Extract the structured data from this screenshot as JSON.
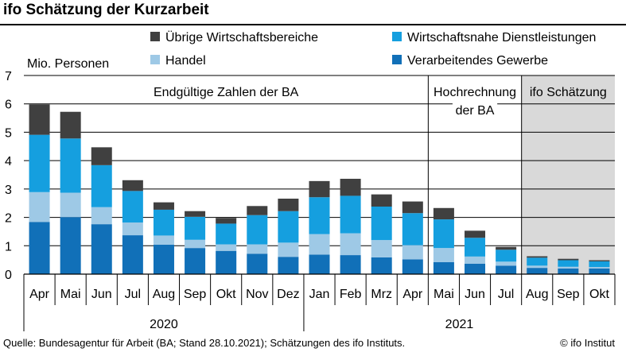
{
  "title": "ifo Schätzung der Kurzarbeit",
  "source": "Quelle: Bundesagentur für Arbeit (BA; Stand 28.10.2021); Schätzungen des ifo Instituts.",
  "copyright": "© ifo Institut",
  "colors": {
    "verarbeitendes": "#1170b8",
    "handel": "#9ec9e6",
    "dienstleistungen": "#159fdf",
    "uebrige": "#404040",
    "shade": "#d9d9d9",
    "gridline": "#000000"
  },
  "chart_data": {
    "type": "bar",
    "stacked": true,
    "ylabel": "Mio. Personen",
    "ylim": [
      0,
      7
    ],
    "yticks": [
      "0",
      "1",
      "2",
      "3",
      "4",
      "5",
      "6",
      "7"
    ],
    "grid": true,
    "legend_position": "top",
    "categories": [
      "Apr",
      "Mai",
      "Jun",
      "Jul",
      "Aug",
      "Sep",
      "Okt",
      "Nov",
      "Dez",
      "Jan",
      "Feb",
      "Mrz",
      "Apr",
      "Mai",
      "Jun",
      "Jul",
      "Aug",
      "Sep",
      "Okt"
    ],
    "years": [
      {
        "label": "2020",
        "from": 0,
        "to": 8
      },
      {
        "label": "2021",
        "from": 9,
        "to": 18
      }
    ],
    "series": [
      {
        "name": "Verarbeitendes Gewerbe",
        "color_key": "verarbeitendes",
        "values": [
          1.84,
          2.01,
          1.76,
          1.37,
          1.04,
          0.92,
          0.82,
          0.72,
          0.61,
          0.69,
          0.67,
          0.59,
          0.52,
          0.42,
          0.37,
          0.3,
          0.22,
          0.2,
          0.2
        ]
      },
      {
        "name": "Handel",
        "color_key": "handel",
        "values": [
          1.05,
          0.86,
          0.6,
          0.45,
          0.32,
          0.29,
          0.23,
          0.33,
          0.5,
          0.72,
          0.77,
          0.61,
          0.5,
          0.5,
          0.25,
          0.14,
          0.08,
          0.06,
          0.05
        ]
      },
      {
        "name": "Wirtschaftsnahe Dienstleistungen",
        "color_key": "dienstleistungen",
        "values": [
          2.02,
          1.91,
          1.48,
          1.11,
          0.91,
          0.81,
          0.73,
          1.03,
          1.11,
          1.3,
          1.32,
          1.18,
          1.13,
          1.01,
          0.66,
          0.42,
          0.28,
          0.23,
          0.2
        ]
      },
      {
        "name": "Übrige Wirtschaftsbereiche",
        "color_key": "uebrige",
        "values": [
          1.07,
          0.94,
          0.63,
          0.38,
          0.26,
          0.2,
          0.2,
          0.32,
          0.44,
          0.57,
          0.6,
          0.43,
          0.41,
          0.4,
          0.25,
          0.1,
          0.05,
          0.05,
          0.04
        ]
      }
    ],
    "legend_order": [
      "Übrige Wirtschaftsbereiche",
      "Wirtschaftsnahe Dienstleistungen",
      "Handel",
      "Verarbeitendes Gewerbe"
    ],
    "sections": [
      {
        "label": "Endgültige Zahlen der BA",
        "from": 0,
        "to": 12,
        "shaded": false,
        "lines": [
          "Endgültige Zahlen der BA"
        ]
      },
      {
        "label": "Hochrechnung der BA",
        "from": 13,
        "to": 15,
        "shaded": false,
        "lines": [
          "Hochrechnung",
          "der BA"
        ]
      },
      {
        "label": "ifo Schätzung",
        "from": 16,
        "to": 18,
        "shaded": true,
        "lines": [
          "ifo Schätzung"
        ]
      }
    ]
  }
}
